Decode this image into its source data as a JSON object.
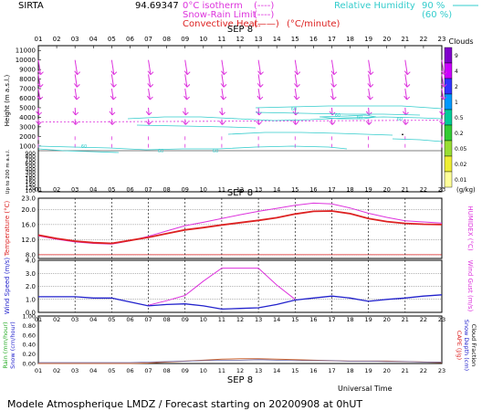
{
  "header": {
    "station": "SIRTA",
    "coords": "94.69347",
    "legend_isotherm": "0°C isotherm",
    "legend_isotherm_style": "(----)",
    "legend_snow_rain": "Snow-Rain Limit",
    "legend_snow_rain_style": "(----)",
    "legend_convective": "Convective Heat.",
    "legend_convective_style": "(——)",
    "legend_convective_unit": "(°C/minute)",
    "legend_rh": "Relative Humidity",
    "legend_rh_90": "90 %",
    "legend_rh_60": "(60 %)"
  },
  "footer": {
    "left": "Modele Atmospherique LMDZ / Forecast starting on 20200908 at 0hUT",
    "universal_time": "Universal Time"
  },
  "colors": {
    "temperature": "#dd2222",
    "humidex": "#dd33dd",
    "wind": "#2222cc",
    "gust": "#dd33dd",
    "rh": "#33cccc",
    "arrows": "#dd33dd",
    "isotherm": "#dd33dd"
  },
  "chart_data": [
    {
      "type": "heatmap",
      "xlabel": "SEP 8",
      "ylabel": "Height (m a.s.l.)",
      "sub_ylabel": "Up to 200 m a.s.l.",
      "x_ticks": [
        "01",
        "02",
        "03",
        "04",
        "05",
        "06",
        "07",
        "08",
        "09",
        "10",
        "11",
        "12",
        "13",
        "14",
        "15",
        "16",
        "17",
        "18",
        "19",
        "20",
        "21",
        "22",
        "23"
      ],
      "y_ticks_upper": [
        11000,
        10000,
        9000,
        8000,
        7000,
        6000,
        5000,
        4000,
        3000,
        2000,
        1000
      ],
      "y_ticks_lower": [
        900,
        800,
        700,
        600,
        500,
        400,
        300,
        200,
        180,
        160,
        140,
        120,
        100
      ],
      "isotherm_zero_height_m": 3500,
      "clouds_scale_title": "Clouds",
      "clouds_scale_unit": "(g/kg)",
      "clouds_scale": [
        "9",
        "4",
        "2",
        "1",
        "0.5",
        "0.2",
        "0.05",
        "0.02",
        "0.01"
      ],
      "rh_contour_labels": [
        "60",
        "60",
        "60",
        "60",
        "60",
        "60",
        "60"
      ]
    },
    {
      "type": "line",
      "x": [
        "01",
        "02",
        "03",
        "04",
        "05",
        "06",
        "07",
        "08",
        "09",
        "10",
        "11",
        "12",
        "13",
        "14",
        "15",
        "16",
        "17",
        "18",
        "19",
        "20",
        "21",
        "22",
        "23"
      ],
      "ylabel": "Temperature (°C)",
      "ylabel2": "HUMIDEX (°C)",
      "yticks": [
        "23.0",
        "20.0",
        "16.0",
        "12.0",
        "8.0"
      ],
      "ylim": [
        7,
        23
      ],
      "series": [
        {
          "name": "Temperature",
          "values": [
            13.2,
            12.3,
            11.6,
            11.2,
            11.0,
            11.8,
            12.6,
            13.6,
            14.6,
            15.2,
            15.9,
            16.5,
            17.1,
            17.8,
            18.8,
            19.5,
            19.6,
            18.9,
            17.6,
            16.8,
            16.3,
            16.1,
            16.0
          ]
        },
        {
          "name": "HUMIDEX",
          "values": [
            13.0,
            12.1,
            11.4,
            11.0,
            10.8,
            11.7,
            12.9,
            14.3,
            15.7,
            16.6,
            17.6,
            18.6,
            19.5,
            20.3,
            21.1,
            21.7,
            21.5,
            20.4,
            19.0,
            17.9,
            17.0,
            16.7,
            16.4
          ]
        }
      ]
    },
    {
      "type": "line",
      "x": [
        "01",
        "02",
        "03",
        "04",
        "05",
        "06",
        "07",
        "08",
        "09",
        "10",
        "11",
        "12",
        "13",
        "14",
        "15",
        "16",
        "17",
        "18",
        "19",
        "20",
        "21",
        "22",
        "23"
      ],
      "ylabel": "Wind Speed (m/s)",
      "ylabel2": "Wind Gust (m/s)",
      "yticks": [
        "4.0",
        "3.0",
        "2.0",
        "1.0",
        "0.0"
      ],
      "ylim": [
        0,
        4
      ],
      "series": [
        {
          "name": "Wind Speed",
          "values": [
            1.2,
            1.2,
            1.2,
            1.1,
            1.1,
            0.8,
            0.5,
            0.6,
            0.65,
            0.5,
            0.25,
            0.3,
            0.35,
            0.6,
            0.95,
            1.1,
            1.25,
            1.1,
            0.85,
            1.0,
            1.1,
            1.25,
            1.35
          ]
        },
        {
          "name": "Wind Gust",
          "values": [
            null,
            null,
            null,
            null,
            null,
            null,
            0.55,
            0.9,
            1.3,
            2.4,
            3.4,
            3.4,
            3.4,
            2.1,
            1.0,
            null,
            null,
            null,
            null,
            null,
            null,
            null,
            null
          ]
        }
      ]
    },
    {
      "type": "line",
      "x": [
        "01",
        "02",
        "03",
        "04",
        "05",
        "06",
        "07",
        "08",
        "09",
        "10",
        "11",
        "12",
        "13",
        "14",
        "15",
        "16",
        "17",
        "18",
        "19",
        "20",
        "21",
        "22",
        "23"
      ],
      "xlabel": "SEP 8",
      "ylabel": "Rain (mm/hour)",
      "ylabel_b": "Snow (cm/hour)",
      "ylabel2": "CAPE (J/g)",
      "ylabel2_b": "Snow Depth (cm)",
      "ylabel2_c": "Cloud Fraction",
      "yticks": [
        "1.00",
        "0.80",
        "0.60",
        "0.40",
        "0.20",
        "0.00"
      ],
      "ylim": [
        0,
        1
      ],
      "series": [
        {
          "name": "CAPE",
          "values": [
            0,
            0,
            0,
            0,
            0,
            0,
            0.01,
            0.03,
            0.05,
            0.07,
            0.09,
            0.1,
            0.1,
            0.09,
            0.08,
            0.07,
            0.06,
            0.05,
            0.05,
            0.05,
            0.04,
            0.03,
            0.02
          ]
        },
        {
          "name": "Cloud",
          "values": [
            0.02,
            0.02,
            0.02,
            0.02,
            0.02,
            0.02,
            0.03,
            0.04,
            0.05,
            0.06,
            0.07,
            0.07,
            0.08,
            0.07,
            0.06,
            0.06,
            0.06,
            0.05,
            0.05,
            0.04,
            0.04,
            0.03,
            0.03
          ]
        }
      ]
    }
  ]
}
